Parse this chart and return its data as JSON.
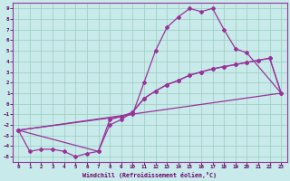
{
  "background_color": "#c8eaea",
  "line_color": "#993399",
  "grid_color": "#99ccbb",
  "xlabel": "Windchill (Refroidissement éolien,°C)",
  "xlim": [
    -0.5,
    23.5
  ],
  "ylim": [
    -5.5,
    9.5
  ],
  "xticks": [
    0,
    1,
    2,
    3,
    4,
    5,
    6,
    7,
    8,
    9,
    10,
    11,
    12,
    13,
    14,
    15,
    16,
    17,
    18,
    19,
    20,
    21,
    22,
    23
  ],
  "yticks": [
    9,
    8,
    7,
    6,
    5,
    4,
    3,
    2,
    1,
    0,
    -1,
    -2,
    -3,
    -4,
    -5
  ],
  "curve_main": {
    "x": [
      0,
      1,
      2,
      3,
      4,
      5,
      6,
      7,
      8,
      9,
      10,
      11,
      12,
      13,
      14,
      15,
      16,
      17,
      18,
      19,
      20
    ],
    "y": [
      -2.5,
      -4.5,
      -4.3,
      -4.3,
      -4.5,
      -5.0,
      -4.7,
      -4.5,
      -1.5,
      -1.2,
      -1.0,
      2.0,
      5.0,
      7.2,
      8.2,
      9.0,
      8.7,
      9.0,
      7.0,
      5.2,
      4.8
    ]
  },
  "curve_close_top": {
    "x": [
      20,
      23
    ],
    "y": [
      4.8,
      1.0
    ]
  },
  "curve_line1": {
    "x": [
      0,
      23
    ],
    "y": [
      -2.5,
      1.0
    ]
  },
  "curve_line2": {
    "x": [
      0,
      7,
      8,
      9,
      10,
      11,
      12,
      13,
      14,
      15,
      16,
      17,
      18,
      19,
      20,
      21,
      22,
      23
    ],
    "y": [
      -2.5,
      -4.5,
      -2.0,
      -1.5,
      -0.8,
      0.5,
      1.2,
      1.8,
      2.2,
      2.7,
      3.0,
      3.3,
      3.5,
      3.7,
      3.9,
      4.1,
      4.3,
      1.0
    ]
  },
  "curve_line3": {
    "x": [
      0,
      9,
      10,
      11,
      12,
      13,
      14,
      15,
      16,
      17,
      18,
      19,
      20,
      21,
      22,
      23
    ],
    "y": [
      -2.5,
      -1.2,
      -0.8,
      0.5,
      1.2,
      1.8,
      2.2,
      2.7,
      3.0,
      3.3,
      3.5,
      3.7,
      3.9,
      4.1,
      4.3,
      1.0
    ]
  },
  "end_segment": {
    "x": [
      21,
      22,
      23
    ],
    "y": [
      4.1,
      4.3,
      1.0
    ]
  }
}
